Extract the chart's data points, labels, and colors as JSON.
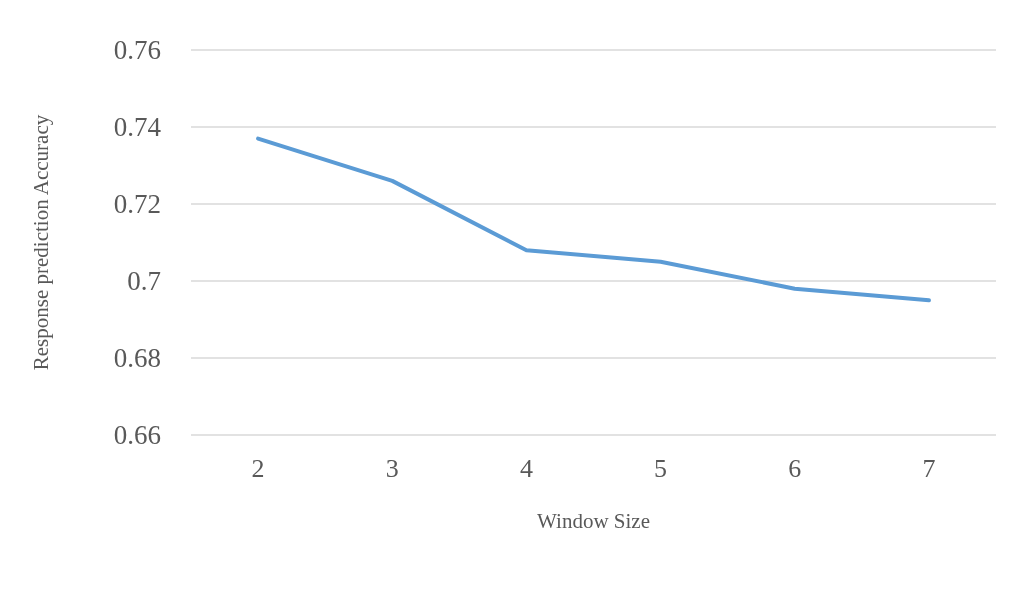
{
  "chart_data": {
    "type": "line",
    "xlabel": "Window Size",
    "ylabel": "Response prediction Accuracy",
    "categories": [
      "2",
      "3",
      "4",
      "5",
      "6",
      "7"
    ],
    "series": [
      {
        "color": "#5b9bd5",
        "values": [
          0.737,
          0.726,
          0.708,
          0.705,
          0.698,
          0.695
        ]
      }
    ],
    "ylim": [
      0.66,
      0.76
    ],
    "yticks": [
      0.66,
      0.68,
      0.7,
      0.72,
      0.74,
      0.76
    ],
    "grid": "y",
    "marker": "none",
    "line_style": "solid"
  }
}
